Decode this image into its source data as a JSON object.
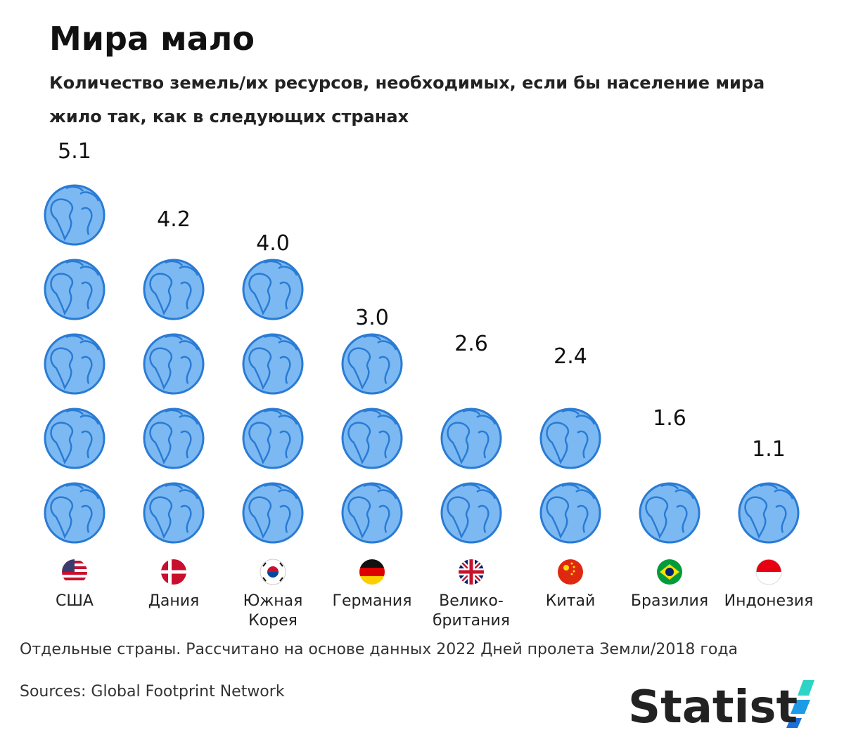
{
  "chart_data": {
    "type": "pictogram",
    "title": "Мира мало",
    "subtitle": "Количество земель/их ресурсов, необходимых, если бы население мира жило так, как в следующих странах",
    "categories": [
      "США",
      "Дания",
      "Южная Корея",
      "Германия",
      "Велико-британия",
      "Китай",
      "Бразилия",
      "Индонезия"
    ],
    "values": [
      5.1,
      4.2,
      4.0,
      3.0,
      2.6,
      2.4,
      1.6,
      1.1
    ],
    "value_labels": [
      "5.1",
      "4.2",
      "4.0",
      "3.0",
      "2.6",
      "2.4",
      "1.6",
      "1.1"
    ],
    "color": "#7cb9f2",
    "note": "Отдельные страны. Рассчитано на основе данных 2022 Дней пролета Земли/2018 года",
    "source": "Sources: Global Footprint Network",
    "brand": "Statist"
  }
}
